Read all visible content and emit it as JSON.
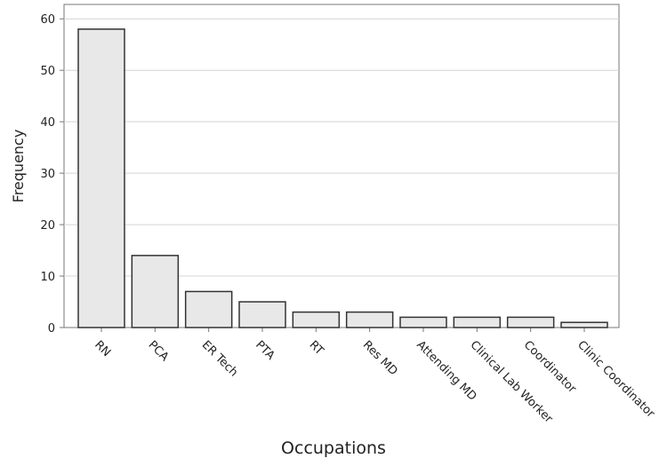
{
  "chart_data": {
    "type": "bar",
    "x_label": "Occupations",
    "y_label": "Frequency",
    "categories": [
      "RN",
      "PCA",
      "ER Tech",
      "PTA",
      "RT",
      "Res MD",
      "Attending MD",
      "Clinical Lab Worker",
      "Coordinator",
      "Clinic Coordinator"
    ],
    "values": [
      58,
      14,
      7,
      5,
      3,
      3,
      2,
      2,
      2,
      1
    ],
    "color": "#e8e8e8",
    "ylim": [
      0,
      62.8
    ],
    "yticks": [
      0,
      10,
      20,
      30,
      40,
      50,
      60
    ],
    "grid": true
  }
}
